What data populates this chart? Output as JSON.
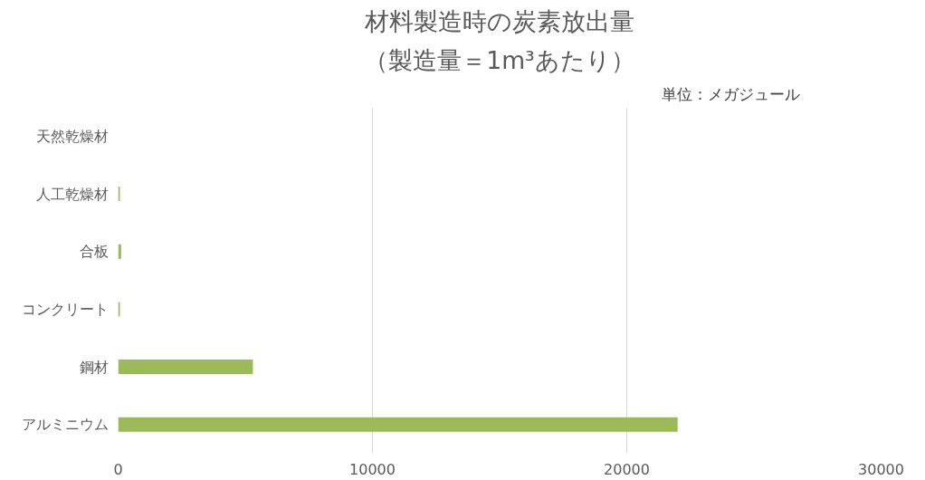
{
  "chart_data": {
    "type": "bar",
    "orientation": "horizontal",
    "title": "材料製造時の炭素放出量",
    "subtitle": "（製造量＝1m³あたり）",
    "annotations": [
      "単位：メガジュール"
    ],
    "categories": [
      "天然乾燥材",
      "人工乾燥材",
      "合板",
      "コンクリート",
      "鋼材",
      "アルミニウム"
    ],
    "values": [
      0,
      70,
      120,
      70,
      5300,
      22000
    ],
    "color": "#9bbb59",
    "xlim": [
      0,
      30000
    ],
    "xticks": [
      0,
      10000,
      20000,
      30000
    ],
    "grid": "x"
  }
}
